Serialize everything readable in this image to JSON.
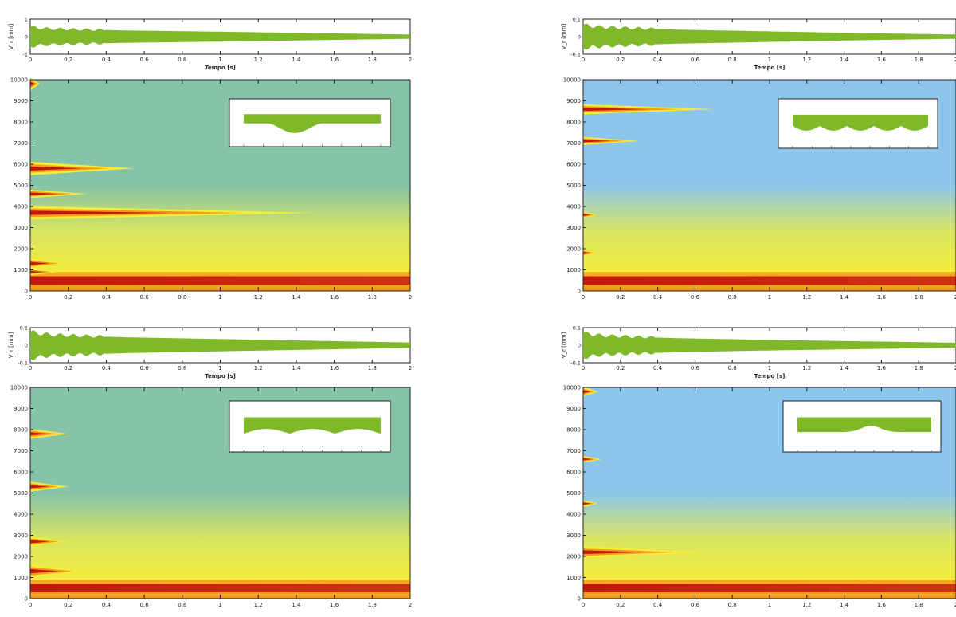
{
  "colors": {
    "signal": "#7fb92a",
    "spectrogram_bg_green": "#86c3a8",
    "spectrogram_bg_blue": "#8cc6ea",
    "yellow": "#f5ec3a",
    "orange": "#f39a1c",
    "red": "#c4170c"
  },
  "chart_data": [
    {
      "id": "panel-top-left",
      "time_series": {
        "type": "area",
        "ylabel": "V_r [mm]",
        "xlabel": "Tempo [s]",
        "xlim": [
          0,
          2
        ],
        "ylim": [
          -1,
          1
        ],
        "xticks": [
          "0",
          "0.2",
          "0.4",
          "0.6",
          "0.8",
          "1",
          "1.2",
          "1.4",
          "1.6",
          "1.8",
          "2"
        ],
        "yticks": [
          "1",
          "0",
          "-1"
        ],
        "envelope": [
          {
            "x": 0,
            "y": 0.55
          },
          {
            "x": 0.1,
            "y": 0.45
          },
          {
            "x": 0.5,
            "y": 0.35
          },
          {
            "x": 1.0,
            "y": 0.28
          },
          {
            "x": 1.5,
            "y": 0.2
          },
          {
            "x": 2.0,
            "y": 0.12
          }
        ]
      },
      "spectrogram": {
        "type": "heatmap",
        "xlim": [
          0,
          2
        ],
        "ylim": [
          0,
          10000
        ],
        "xticks": [
          "0",
          "0.2",
          "0.4",
          "0.6",
          "0.8",
          "1",
          "1.2",
          "1.4",
          "1.6",
          "1.8",
          "2"
        ],
        "yticks": [
          "0",
          "1000",
          "2000",
          "3000",
          "4000",
          "5000",
          "6000",
          "7000",
          "8000",
          "9000",
          "10000"
        ],
        "background": "green",
        "base_decay_s": 2.0,
        "bands": [
          {
            "freq": 9800,
            "width": 400,
            "decay": 0.05
          },
          {
            "freq": 5800,
            "width": 400,
            "decay": 0.55
          },
          {
            "freq": 4600,
            "width": 250,
            "decay": 0.3
          },
          {
            "freq": 3700,
            "width": 400,
            "decay": 1.5
          },
          {
            "freq": 1300,
            "width": 300,
            "decay": 0.2
          },
          {
            "freq": 900,
            "width": 200,
            "decay": 0.15
          }
        ],
        "inset_profile": "two-dips"
      }
    },
    {
      "id": "panel-top-right",
      "time_series": {
        "type": "area",
        "ylabel": "V_r [mm]",
        "xlabel": "Tempo [s]",
        "xlim": [
          0,
          2
        ],
        "ylim": [
          -0.1,
          0.1
        ],
        "xticks": [
          "0",
          "0.2",
          "0.4",
          "0.6",
          "0.8",
          "1",
          "1.2",
          "1.4",
          "1.6",
          "1.8",
          "2"
        ],
        "yticks": [
          "0.1",
          "0",
          "-0.1"
        ],
        "envelope": [
          {
            "x": 0,
            "y": 0.065
          },
          {
            "x": 0.1,
            "y": 0.055
          },
          {
            "x": 0.5,
            "y": 0.04
          },
          {
            "x": 1.0,
            "y": 0.03
          },
          {
            "x": 1.5,
            "y": 0.02
          },
          {
            "x": 2.0,
            "y": 0.012
          }
        ]
      },
      "spectrogram": {
        "type": "heatmap",
        "xlim": [
          0,
          2
        ],
        "ylim": [
          0,
          10000
        ],
        "xticks": [
          "0",
          "0.2",
          "0.4",
          "0.6",
          "0.8",
          "1",
          "1.2",
          "1.4",
          "1.6",
          "1.8",
          "2"
        ],
        "yticks": [
          "0",
          "1000",
          "2000",
          "3000",
          "4000",
          "5000",
          "6000",
          "7000",
          "8000",
          "9000",
          "10000"
        ],
        "background": "blue",
        "base_decay_s": 1.1,
        "bands": [
          {
            "freq": 8600,
            "width": 300,
            "decay": 0.7
          },
          {
            "freq": 7100,
            "width": 250,
            "decay": 0.3
          },
          {
            "freq": 3600,
            "width": 200,
            "decay": 0.08
          },
          {
            "freq": 1800,
            "width": 200,
            "decay": 0.08
          }
        ],
        "inset_profile": "waves"
      }
    },
    {
      "id": "panel-bottom-left",
      "time_series": {
        "type": "area",
        "ylabel": "V_r [mm]",
        "xlabel": "Tempo [s]",
        "xlim": [
          0,
          2
        ],
        "ylim": [
          -0.1,
          0.1
        ],
        "xticks": [
          "0",
          "0.2",
          "0.4",
          "0.6",
          "0.8",
          "1",
          "1.2",
          "1.4",
          "1.6",
          "1.8",
          "2"
        ],
        "yticks": [
          "0.1",
          "0",
          "-0.1"
        ],
        "envelope": [
          {
            "x": 0,
            "y": 0.075
          },
          {
            "x": 0.1,
            "y": 0.06
          },
          {
            "x": 0.5,
            "y": 0.045
          },
          {
            "x": 1.0,
            "y": 0.035
          },
          {
            "x": 1.5,
            "y": 0.025
          },
          {
            "x": 2.0,
            "y": 0.015
          }
        ]
      },
      "spectrogram": {
        "type": "heatmap",
        "xlim": [
          0,
          2
        ],
        "ylim": [
          0,
          10000
        ],
        "xticks": [
          "0",
          "0.2",
          "0.4",
          "0.6",
          "0.8",
          "1",
          "1.2",
          "1.4",
          "1.6",
          "1.8",
          "2"
        ],
        "yticks": [
          "0",
          "1000",
          "2000",
          "3000",
          "4000",
          "5000",
          "6000",
          "7000",
          "8000",
          "9000",
          "10000"
        ],
        "background": "green",
        "base_decay_s": 1.6,
        "bands": [
          {
            "freq": 7800,
            "width": 300,
            "decay": 0.2
          },
          {
            "freq": 5300,
            "width": 300,
            "decay": 0.2
          },
          {
            "freq": 2700,
            "width": 300,
            "decay": 0.2
          },
          {
            "freq": 1300,
            "width": 400,
            "decay": 0.3
          }
        ],
        "inset_profile": "gentle"
      }
    },
    {
      "id": "panel-bottom-right",
      "time_series": {
        "type": "area",
        "ylabel": "V_r [mm]",
        "xlabel": "Tempo [s]",
        "xlim": [
          0,
          2
        ],
        "ylim": [
          -0.1,
          0.1
        ],
        "xticks": [
          "0",
          "0.2",
          "0.4",
          "0.6",
          "0.8",
          "1",
          "1.2",
          "1.4",
          "1.6",
          "1.8",
          "2"
        ],
        "yticks": [
          "0.1",
          "0",
          "-0.1"
        ],
        "envelope": [
          {
            "x": 0,
            "y": 0.07
          },
          {
            "x": 0.1,
            "y": 0.055
          },
          {
            "x": 0.5,
            "y": 0.04
          },
          {
            "x": 1.0,
            "y": 0.03
          },
          {
            "x": 1.5,
            "y": 0.022
          },
          {
            "x": 2.0,
            "y": 0.014
          }
        ]
      },
      "spectrogram": {
        "type": "heatmap",
        "xlim": [
          0,
          2
        ],
        "ylim": [
          0,
          10000
        ],
        "xticks": [
          "0",
          "0.2",
          "0.4",
          "0.6",
          "0.8",
          "1",
          "1.2",
          "1.4",
          "1.6",
          "1.8",
          "2"
        ],
        "yticks": [
          "0",
          "1000",
          "2000",
          "3000",
          "4000",
          "5000",
          "6000",
          "7000",
          "8000",
          "9000",
          "10000"
        ],
        "background": "blue",
        "base_decay_s": 1.1,
        "bands": [
          {
            "freq": 9800,
            "width": 300,
            "decay": 0.08
          },
          {
            "freq": 6600,
            "width": 200,
            "decay": 0.1
          },
          {
            "freq": 4500,
            "width": 200,
            "decay": 0.08
          },
          {
            "freq": 2200,
            "width": 350,
            "decay": 0.65
          }
        ],
        "inset_profile": "single-bump"
      }
    }
  ]
}
